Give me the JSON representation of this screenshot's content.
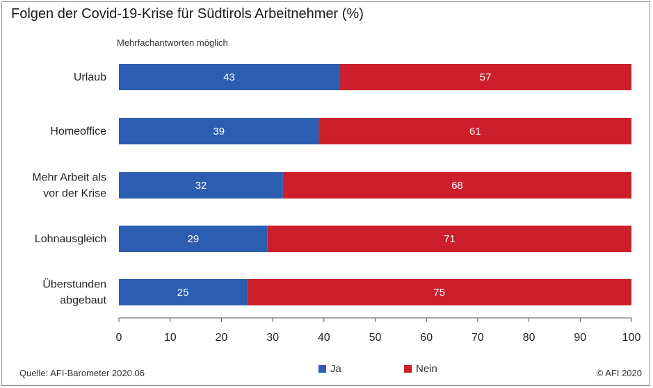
{
  "chart_data": {
    "type": "bar",
    "orientation": "horizontal",
    "stacked": true,
    "title": "Folgen der Covid-19-Krise für Südtirols Arbeitnehmer (%)",
    "subtitle": "Mehrfachantworten möglich",
    "categories": [
      [
        "Urlaub"
      ],
      [
        "Homeoffice"
      ],
      [
        "Mehr Arbeit als",
        "vor der Krise"
      ],
      [
        "Lohnausgleich"
      ],
      [
        "Überstunden",
        "abgebaut"
      ]
    ],
    "series": [
      {
        "name": "Ja",
        "color": "#2b5db0",
        "values": [
          43,
          39,
          32,
          29,
          25
        ]
      },
      {
        "name": "Nein",
        "color": "#cc1f2b",
        "values": [
          57,
          61,
          68,
          71,
          75
        ]
      }
    ],
    "xlim": [
      0,
      100
    ],
    "xticks": [
      0,
      10,
      20,
      30,
      40,
      50,
      60,
      70,
      80,
      90,
      100
    ],
    "grid": false,
    "legend": "bottom-center"
  },
  "footer": {
    "source": "Quelle: AFI-Barometer 2020.06",
    "copyright": "© AFI 2020"
  }
}
